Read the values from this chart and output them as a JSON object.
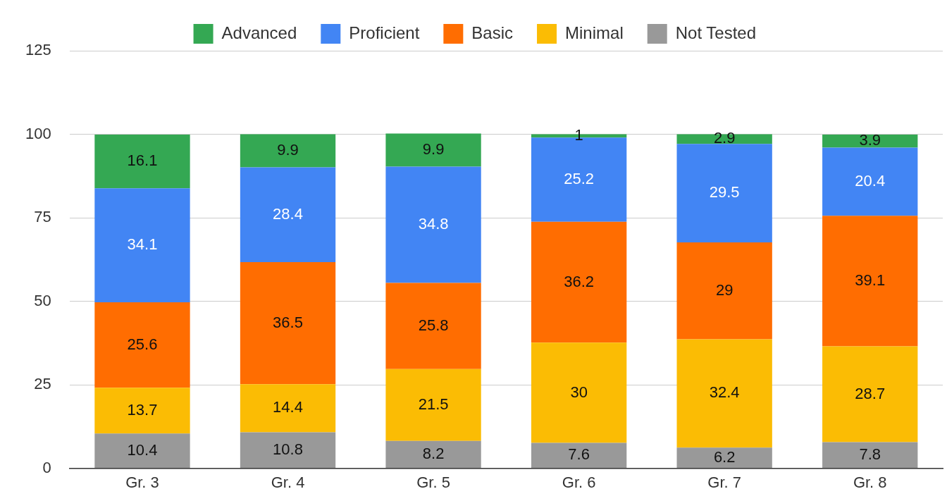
{
  "chart_data": {
    "type": "bar",
    "stacked": true,
    "data_labels": true,
    "grid": "y",
    "legend": "top",
    "categories": [
      "Gr. 3",
      "Gr. 4",
      "Gr. 5",
      "Gr. 6",
      "Gr. 7",
      "Gr. 8"
    ],
    "ylim": [
      0,
      125
    ],
    "yticks": [
      0,
      25,
      50,
      75,
      100,
      125
    ],
    "series": [
      {
        "name": "Not Tested",
        "color": "#999999",
        "values": [
          10.4,
          10.8,
          8.2,
          7.6,
          6.2,
          7.8
        ]
      },
      {
        "name": "Minimal",
        "color": "#fbbc04",
        "values": [
          13.7,
          14.4,
          21.5,
          30,
          32.4,
          28.7
        ]
      },
      {
        "name": "Basic",
        "color": "#ff6d01",
        "values": [
          25.6,
          36.5,
          25.8,
          36.2,
          29,
          39.1
        ]
      },
      {
        "name": "Proficient",
        "color": "#4285f4",
        "values": [
          34.1,
          28.4,
          34.8,
          25.2,
          29.5,
          20.4
        ]
      },
      {
        "name": "Advanced",
        "color": "#34a853",
        "values": [
          16.1,
          9.9,
          9.9,
          1,
          2.9,
          3.9
        ]
      }
    ]
  }
}
